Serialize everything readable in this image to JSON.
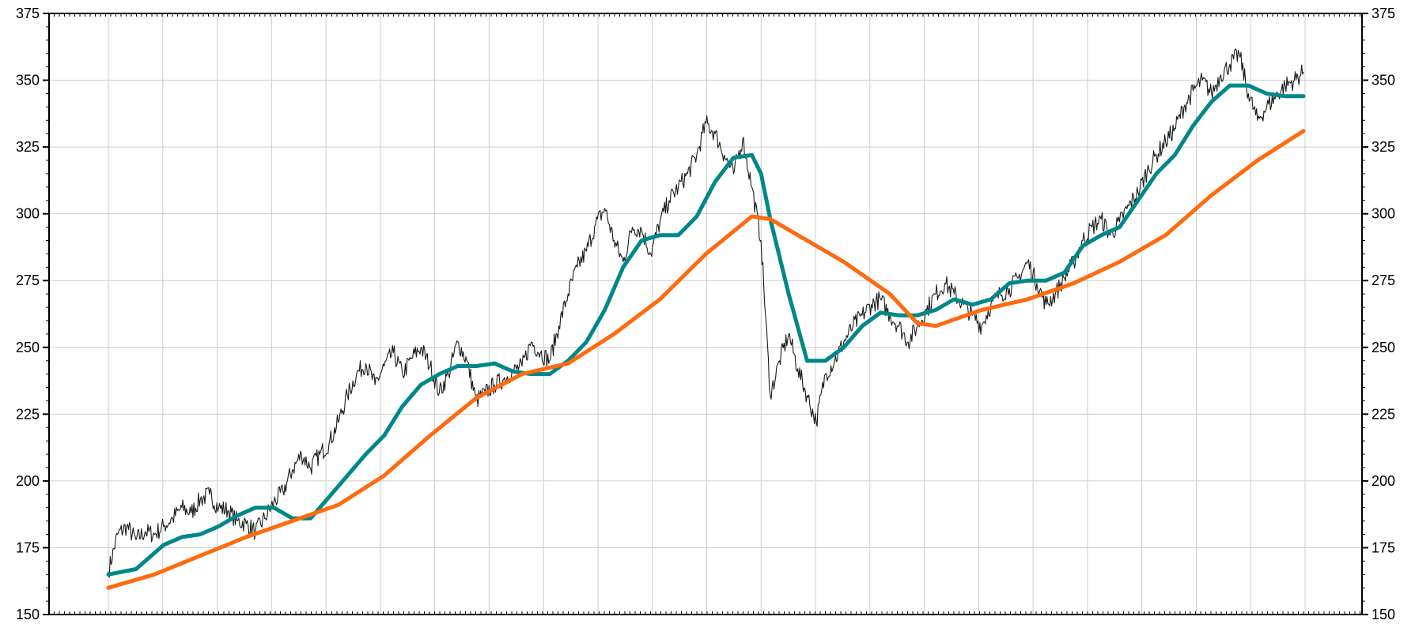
{
  "chart_data": {
    "type": "line",
    "title": "",
    "xlabel": "",
    "ylabel": "",
    "ylim": [
      150,
      375
    ],
    "y_ticks": [
      "150",
      "175",
      "200",
      "225",
      "250",
      "275",
      "300",
      "325",
      "350",
      "375"
    ],
    "y_axis_on_both_sides": true,
    "grid": true,
    "legend": "none",
    "x_grid_count": 23,
    "x_tick_labels_shown": false,
    "series": [
      {
        "kind": "price",
        "color": "#1a1a1a",
        "points": [
          [
            0,
            166
          ],
          [
            1,
            180
          ],
          [
            2,
            183
          ],
          [
            3,
            178
          ],
          [
            4,
            181
          ],
          [
            5,
            180
          ],
          [
            6,
            183
          ],
          [
            7,
            186
          ],
          [
            8,
            190
          ],
          [
            9,
            188
          ],
          [
            10,
            193
          ],
          [
            11,
            195
          ],
          [
            12,
            190
          ],
          [
            13,
            189
          ],
          [
            14,
            185
          ],
          [
            15,
            184
          ],
          [
            16,
            181
          ],
          [
            17,
            186
          ],
          [
            18,
            192
          ],
          [
            19,
            196
          ],
          [
            20,
            204
          ],
          [
            21,
            210
          ],
          [
            22,
            205
          ],
          [
            23,
            210
          ],
          [
            24,
            214
          ],
          [
            25,
            222
          ],
          [
            26,
            232
          ],
          [
            27,
            240
          ],
          [
            28,
            244
          ],
          [
            29,
            236
          ],
          [
            30,
            243
          ],
          [
            31,
            248
          ],
          [
            32,
            240
          ],
          [
            33,
            246
          ],
          [
            34,
            250
          ],
          [
            35,
            243
          ],
          [
            36,
            233
          ],
          [
            37,
            240
          ],
          [
            38,
            252
          ],
          [
            39,
            245
          ],
          [
            40,
            230
          ],
          [
            41,
            233
          ],
          [
            42,
            236
          ],
          [
            43,
            238
          ],
          [
            44,
            241
          ],
          [
            45,
            243
          ],
          [
            46,
            252
          ],
          [
            47,
            248
          ],
          [
            48,
            245
          ],
          [
            49,
            258
          ],
          [
            50,
            270
          ],
          [
            51,
            280
          ],
          [
            52,
            286
          ],
          [
            53,
            296
          ],
          [
            54,
            302
          ],
          [
            55,
            290
          ],
          [
            56,
            282
          ],
          [
            57,
            295
          ],
          [
            58,
            294
          ],
          [
            59,
            285
          ],
          [
            60,
            297
          ],
          [
            61,
            305
          ],
          [
            62,
            310
          ],
          [
            63,
            315
          ],
          [
            64,
            322
          ],
          [
            65,
            334
          ],
          [
            66,
            330
          ],
          [
            67,
            322
          ],
          [
            68,
            315
          ],
          [
            69,
            328
          ],
          [
            70,
            310
          ],
          [
            71,
            290
          ],
          [
            72,
            232
          ],
          [
            73,
            245
          ],
          [
            74,
            255
          ],
          [
            75,
            242
          ],
          [
            76,
            232
          ],
          [
            77,
            222
          ],
          [
            78,
            240
          ],
          [
            79,
            245
          ],
          [
            80,
            252
          ],
          [
            81,
            258
          ],
          [
            82,
            262
          ],
          [
            83,
            266
          ],
          [
            84,
            268
          ],
          [
            85,
            262
          ],
          [
            86,
            258
          ],
          [
            87,
            252
          ],
          [
            88,
            258
          ],
          [
            89,
            264
          ],
          [
            90,
            270
          ],
          [
            91,
            274
          ],
          [
            92,
            270
          ],
          [
            93,
            266
          ],
          [
            94,
            262
          ],
          [
            95,
            258
          ],
          [
            96,
            266
          ],
          [
            97,
            270
          ],
          [
            98,
            272
          ],
          [
            99,
            276
          ],
          [
            100,
            282
          ],
          [
            101,
            274
          ],
          [
            102,
            266
          ],
          [
            103,
            270
          ],
          [
            104,
            276
          ],
          [
            105,
            282
          ],
          [
            106,
            290
          ],
          [
            107,
            295
          ],
          [
            108,
            298
          ],
          [
            109,
            292
          ],
          [
            110,
            297
          ],
          [
            111,
            303
          ],
          [
            112,
            308
          ],
          [
            113,
            316
          ],
          [
            114,
            322
          ],
          [
            115,
            327
          ],
          [
            116,
            332
          ],
          [
            117,
            340
          ],
          [
            118,
            346
          ],
          [
            119,
            350
          ],
          [
            120,
            345
          ],
          [
            121,
            352
          ],
          [
            122,
            356
          ],
          [
            123,
            360
          ],
          [
            124,
            345
          ],
          [
            125,
            335
          ],
          [
            126,
            340
          ],
          [
            127,
            344
          ],
          [
            128,
            348
          ],
          [
            129,
            350
          ],
          [
            130,
            353
          ]
        ]
      },
      {
        "kind": "short-moving-average",
        "color": "#00878a",
        "points": [
          [
            0,
            165
          ],
          [
            3,
            167
          ],
          [
            6,
            176
          ],
          [
            8,
            179
          ],
          [
            10,
            180
          ],
          [
            12,
            183
          ],
          [
            14,
            187
          ],
          [
            16,
            190
          ],
          [
            18,
            190
          ],
          [
            20,
            186
          ],
          [
            22,
            186
          ],
          [
            24,
            194
          ],
          [
            26,
            202
          ],
          [
            28,
            210
          ],
          [
            30,
            217
          ],
          [
            32,
            228
          ],
          [
            34,
            236
          ],
          [
            36,
            240
          ],
          [
            38,
            243
          ],
          [
            40,
            243
          ],
          [
            42,
            244
          ],
          [
            44,
            241
          ],
          [
            46,
            240
          ],
          [
            48,
            240
          ],
          [
            50,
            245
          ],
          [
            52,
            252
          ],
          [
            54,
            264
          ],
          [
            56,
            280
          ],
          [
            58,
            290
          ],
          [
            60,
            292
          ],
          [
            62,
            292
          ],
          [
            64,
            299
          ],
          [
            66,
            312
          ],
          [
            68,
            321
          ],
          [
            70,
            322
          ],
          [
            71,
            315
          ],
          [
            72,
            298
          ],
          [
            74,
            270
          ],
          [
            76,
            245
          ],
          [
            78,
            245
          ],
          [
            80,
            250
          ],
          [
            82,
            258
          ],
          [
            84,
            263
          ],
          [
            86,
            262
          ],
          [
            88,
            262
          ],
          [
            90,
            264
          ],
          [
            92,
            268
          ],
          [
            94,
            266
          ],
          [
            96,
            268
          ],
          [
            98,
            274
          ],
          [
            100,
            275
          ],
          [
            102,
            275
          ],
          [
            104,
            278
          ],
          [
            106,
            288
          ],
          [
            108,
            292
          ],
          [
            110,
            295
          ],
          [
            112,
            305
          ],
          [
            114,
            315
          ],
          [
            116,
            322
          ],
          [
            118,
            333
          ],
          [
            120,
            342
          ],
          [
            122,
            348
          ],
          [
            124,
            348
          ],
          [
            126,
            345
          ],
          [
            128,
            344
          ],
          [
            130,
            344
          ]
        ]
      },
      {
        "kind": "long-moving-average",
        "color": "#ff6a0f",
        "points": [
          [
            0,
            160
          ],
          [
            5,
            165
          ],
          [
            10,
            172
          ],
          [
            15,
            179
          ],
          [
            20,
            185
          ],
          [
            25,
            191
          ],
          [
            30,
            202
          ],
          [
            35,
            217
          ],
          [
            40,
            231
          ],
          [
            45,
            240
          ],
          [
            50,
            244
          ],
          [
            55,
            255
          ],
          [
            60,
            268
          ],
          [
            65,
            285
          ],
          [
            70,
            299
          ],
          [
            72,
            298
          ],
          [
            75,
            292
          ],
          [
            80,
            282
          ],
          [
            85,
            270
          ],
          [
            88,
            259
          ],
          [
            90,
            258
          ],
          [
            95,
            264
          ],
          [
            100,
            268
          ],
          [
            105,
            274
          ],
          [
            110,
            282
          ],
          [
            115,
            292
          ],
          [
            120,
            307
          ],
          [
            125,
            320
          ],
          [
            130,
            331
          ]
        ]
      }
    ]
  }
}
